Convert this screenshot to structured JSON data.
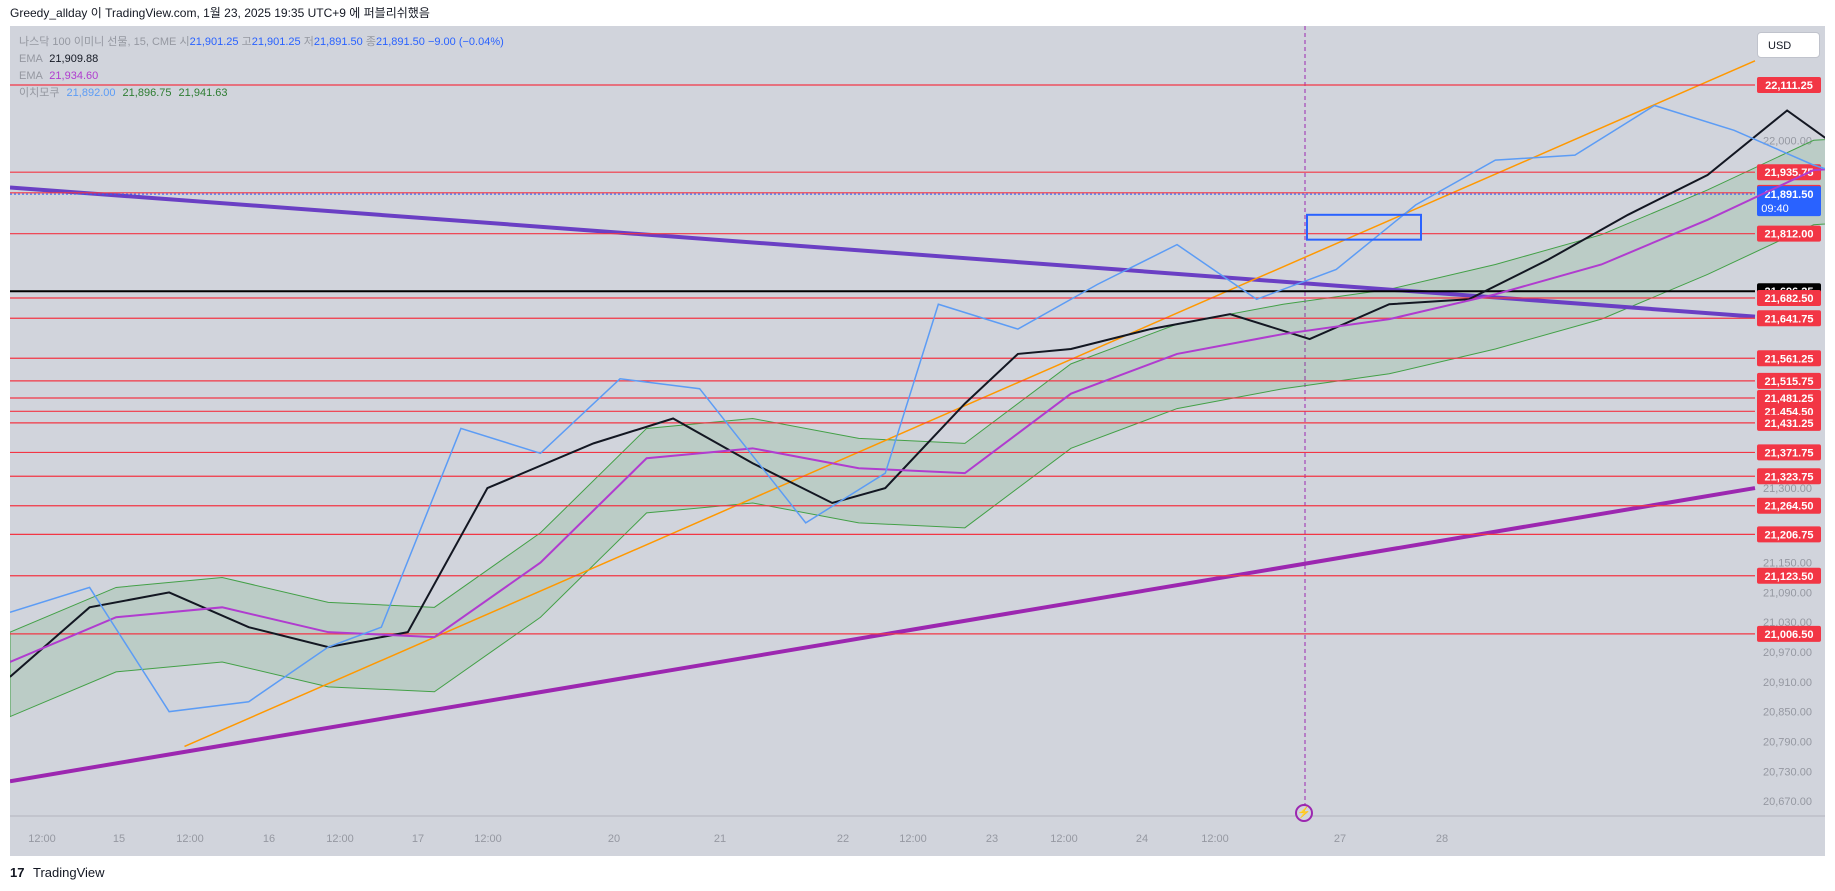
{
  "header": {
    "publisher_line": "Greedy_allday 이 TradingView.com, 1월 23, 2025 19:35 UTC+9 에 퍼블리쉬했음"
  },
  "legend": {
    "symbol": "나스닥 100 이미니 선물, 15, CME",
    "open_label": "시",
    "open": "21,901.25",
    "high_label": "고",
    "high": "21,901.25",
    "low_label": "저",
    "low": "21,891.50",
    "close_label": "종",
    "close": "21,891.50",
    "change": "−9.00 (−0.04%)",
    "ema1_label": "EMA",
    "ema1_value": "21,909.88",
    "ema2_label": "EMA",
    "ema2_value": "21,934.60",
    "ichimoku_label": "이치모쿠",
    "ichimoku_v1": "21,892.00",
    "ichimoku_v2": "21,896.75",
    "ichimoku_v3": "21,941.63"
  },
  "toolbar": {
    "currency_label": "USD"
  },
  "footer": {
    "brand": "TradingView",
    "logo_glyph": "17"
  },
  "colors": {
    "chart_bg": "#d1d4dc",
    "support_red": "#f23645",
    "purple_trend": "#9c27b0",
    "purple_trend_upper": "#6a3fc4",
    "orange_trend": "#ff9800",
    "ema_fast": "#131722",
    "ema_slow": "#b03ccf",
    "ichimoku_lagging": "#5c9cf5",
    "cloud_green": "#43a047",
    "box_blue": "#2962ff"
  },
  "chart_data": {
    "type": "line",
    "title": "나스닥 100 이미니 선물, 15, CME",
    "ylim": [
      20640,
      22230
    ],
    "x_tick_labels": [
      "12:00",
      "15",
      "12:00",
      "16",
      "12:00",
      "17",
      "12:00",
      "20",
      "21",
      "22",
      "12:00",
      "23",
      "12:00",
      "24",
      "12:00",
      "27",
      "28"
    ],
    "y_tick_labels": [
      "22,000.00",
      "21,300.00",
      "21,150.00",
      "21,090.00",
      "21,030.00",
      "20,970.00",
      "20,910.00",
      "20,850.00",
      "20,790.00",
      "20,730.00",
      "20,670.00"
    ],
    "horizontal_levels": [
      {
        "label": "22,111.25",
        "value": 22111.25,
        "color": "#f23645"
      },
      {
        "label": "21,935.75",
        "value": 21935.75,
        "color": "#f23645"
      },
      {
        "label": "21,894.25",
        "value": 21894.25,
        "color": "#f23645"
      },
      {
        "label": "21,812.00",
        "value": 21812.0,
        "color": "#f23645"
      },
      {
        "label": "21,696.25",
        "value": 21696.25,
        "color": "#000000"
      },
      {
        "label": "21,682.50",
        "value": 21682.5,
        "color": "#f23645"
      },
      {
        "label": "21,641.75",
        "value": 21641.75,
        "color": "#f23645"
      },
      {
        "label": "21,561.25",
        "value": 21561.25,
        "color": "#f23645"
      },
      {
        "label": "21,515.75",
        "value": 21515.75,
        "color": "#f23645"
      },
      {
        "label": "21,481.25",
        "value": 21481.25,
        "color": "#f23645"
      },
      {
        "label": "21,454.50",
        "value": 21454.5,
        "color": "#f23645"
      },
      {
        "label": "21,431.25",
        "value": 21431.25,
        "color": "#f23645"
      },
      {
        "label": "21,371.75",
        "value": 21371.75,
        "color": "#f23645"
      },
      {
        "label": "21,323.75",
        "value": 21323.75,
        "color": "#f23645"
      },
      {
        "label": "21,264.50",
        "value": 21264.5,
        "color": "#f23645"
      },
      {
        "label": "21,206.75",
        "value": 21206.75,
        "color": "#f23645"
      },
      {
        "label": "21,123.50",
        "value": 21123.5,
        "color": "#f23645"
      },
      {
        "label": "21,006.50",
        "value": 21006.5,
        "color": "#f23645"
      }
    ],
    "current_price": {
      "label": "21,891.50",
      "countdown": "09:40",
      "value": 21891.5
    },
    "series": [
      {
        "name": "EMA",
        "x": [
          0,
          0.03,
          0.06,
          0.09,
          0.12,
          0.15,
          0.18,
          0.22,
          0.25,
          0.28,
          0.31,
          0.33,
          0.36,
          0.38,
          0.4,
          0.43,
          0.46,
          0.49,
          0.52,
          0.55,
          0.58,
          0.61,
          0.64,
          0.67,
          0.7,
          0.74
        ],
        "values": [
          20920,
          21060,
          21090,
          21020,
          20980,
          21010,
          21300,
          21390,
          21440,
          21350,
          21270,
          21300,
          21470,
          21570,
          21580,
          21620,
          21650,
          21600,
          21670,
          21680,
          21760,
          21850,
          21930,
          22060,
          21945,
          21890
        ]
      },
      {
        "name": "EMA",
        "x": [
          0,
          0.04,
          0.08,
          0.12,
          0.16,
          0.2,
          0.24,
          0.28,
          0.32,
          0.36,
          0.4,
          0.44,
          0.48,
          0.52,
          0.56,
          0.6,
          0.64,
          0.68,
          0.71,
          0.74
        ],
        "values": [
          20950,
          21040,
          21060,
          21010,
          21000,
          21150,
          21360,
          21380,
          21340,
          21330,
          21490,
          21570,
          21610,
          21640,
          21690,
          21750,
          21840,
          21940,
          21950,
          21930
        ]
      },
      {
        "name": "이치모쿠",
        "x": [
          0,
          0.03,
          0.06,
          0.09,
          0.12,
          0.14,
          0.17,
          0.2,
          0.23,
          0.26,
          0.3,
          0.33,
          0.35,
          0.38,
          0.41,
          0.44,
          0.47,
          0.5,
          0.53,
          0.56,
          0.59,
          0.62,
          0.65,
          0.68,
          0.71
        ],
        "values": [
          21050,
          21100,
          20850,
          20870,
          20980,
          21020,
          21420,
          21370,
          21520,
          21500,
          21230,
          21330,
          21670,
          21620,
          21710,
          21790,
          21680,
          21740,
          21870,
          21960,
          21970,
          22070,
          22020,
          21950,
          21900
        ]
      }
    ],
    "trendlines": [
      {
        "name": "",
        "color": "#6a3fc4",
        "from": [
          0,
          21905
        ],
        "to": [
          1,
          21645
        ]
      },
      {
        "name": "",
        "color": "#9c27b0",
        "from": [
          0,
          20710
        ],
        "to": [
          1,
          21300
        ]
      },
      {
        "name": "",
        "color": "#ff9800",
        "from": [
          0.1,
          20780
        ],
        "to": [
          1,
          22160
        ]
      }
    ],
    "target_box": {
      "y_top": 21850,
      "y_bottom": 21800
    }
  }
}
